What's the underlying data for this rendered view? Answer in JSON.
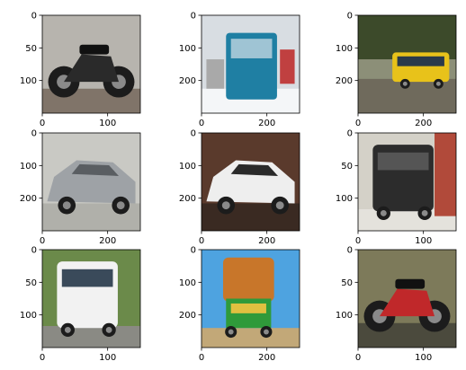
{
  "chart_data": [
    {
      "type": "image",
      "subject": "motorcycle",
      "colors": {
        "bg": "#b7b4ae",
        "fg": "#2a2a2a",
        "accent": "#5c4a3a"
      },
      "xlim": [
        0,
        150
      ],
      "ylim": [
        150,
        0
      ],
      "xticks": [
        0,
        100
      ],
      "yticks": [
        0,
        50,
        100
      ],
      "xtick_labels": [
        "0",
        "100"
      ],
      "ytick_labels": [
        "0",
        "50",
        "100"
      ]
    },
    {
      "type": "image",
      "subject": "bus-rear",
      "colors": {
        "bg": "#d8dde2",
        "fg": "#1f7fa3",
        "accent": "#ffffff"
      },
      "xlim": [
        0,
        300
      ],
      "ylim": [
        300,
        0
      ],
      "xticks": [
        0,
        200
      ],
      "yticks": [
        0,
        100,
        200
      ],
      "xtick_labels": [
        "0",
        "200"
      ],
      "ytick_labels": [
        "0",
        "100",
        "200"
      ]
    },
    {
      "type": "image",
      "subject": "bus-yellow",
      "colors": {
        "bg": "#8c8f78",
        "fg": "#e8c21a",
        "accent": "#3c4a2a"
      },
      "xlim": [
        0,
        300
      ],
      "ylim": [
        300,
        0
      ],
      "xticks": [
        0,
        200
      ],
      "yticks": [
        0,
        100,
        200
      ],
      "xtick_labels": [
        "0",
        "200"
      ],
      "ytick_labels": [
        "0",
        "100",
        "200"
      ]
    },
    {
      "type": "image",
      "subject": "car-silver",
      "colors": {
        "bg": "#c9c9c4",
        "fg": "#9ea2a6",
        "accent": "#5a5e62"
      },
      "xlim": [
        0,
        300
      ],
      "ylim": [
        300,
        0
      ],
      "xticks": [
        0,
        200
      ],
      "yticks": [
        0,
        100,
        200
      ],
      "xtick_labels": [
        "0",
        "200"
      ],
      "ytick_labels": [
        "0",
        "100",
        "200"
      ]
    },
    {
      "type": "image",
      "subject": "car-white",
      "colors": {
        "bg": "#5a3a2c",
        "fg": "#eeeeee",
        "accent": "#2a2a2a"
      },
      "xlim": [
        0,
        300
      ],
      "ylim": [
        300,
        0
      ],
      "xticks": [
        0,
        200
      ],
      "yticks": [
        0,
        100,
        200
      ],
      "xtick_labels": [
        "0",
        "200"
      ],
      "ytick_labels": [
        "0",
        "100",
        "200"
      ]
    },
    {
      "type": "image",
      "subject": "van-black",
      "colors": {
        "bg": "#d4d1c8",
        "fg": "#2c2c2c",
        "accent": "#b14a3a"
      },
      "xlim": [
        0,
        150
      ],
      "ylim": [
        150,
        0
      ],
      "xticks": [
        0,
        100
      ],
      "yticks": [
        0,
        50,
        100
      ],
      "xtick_labels": [
        "0",
        "100"
      ],
      "ytick_labels": [
        "0",
        "50",
        "100"
      ]
    },
    {
      "type": "image",
      "subject": "van-white",
      "colors": {
        "bg": "#6b8a4a",
        "fg": "#f2f2f2",
        "accent": "#2a2a2a"
      },
      "xlim": [
        0,
        150
      ],
      "ylim": [
        150,
        0
      ],
      "xticks": [
        0,
        100
      ],
      "yticks": [
        0,
        50,
        100
      ],
      "xtick_labels": [
        "0",
        "100"
      ],
      "ytick_labels": [
        "0",
        "50",
        "100"
      ]
    },
    {
      "type": "image",
      "subject": "truck-decorated",
      "colors": {
        "bg": "#4ea3e0",
        "fg": "#c8762a",
        "accent": "#2f9a3a"
      },
      "xlim": [
        0,
        300
      ],
      "ylim": [
        300,
        0
      ],
      "xticks": [
        0,
        200
      ],
      "yticks": [
        0,
        100,
        200
      ],
      "xtick_labels": [
        "0",
        "200"
      ],
      "ytick_labels": [
        "0",
        "100",
        "200"
      ]
    },
    {
      "type": "image",
      "subject": "motorcycle-red",
      "colors": {
        "bg": "#7d7a5a",
        "fg": "#c0282a",
        "accent": "#2a2a2a"
      },
      "xlim": [
        0,
        150
      ],
      "ylim": [
        150,
        0
      ],
      "xticks": [
        0,
        100
      ],
      "yticks": [
        0,
        50,
        100
      ],
      "xtick_labels": [
        "0",
        "100"
      ],
      "ytick_labels": [
        "0",
        "50",
        "100"
      ]
    }
  ]
}
